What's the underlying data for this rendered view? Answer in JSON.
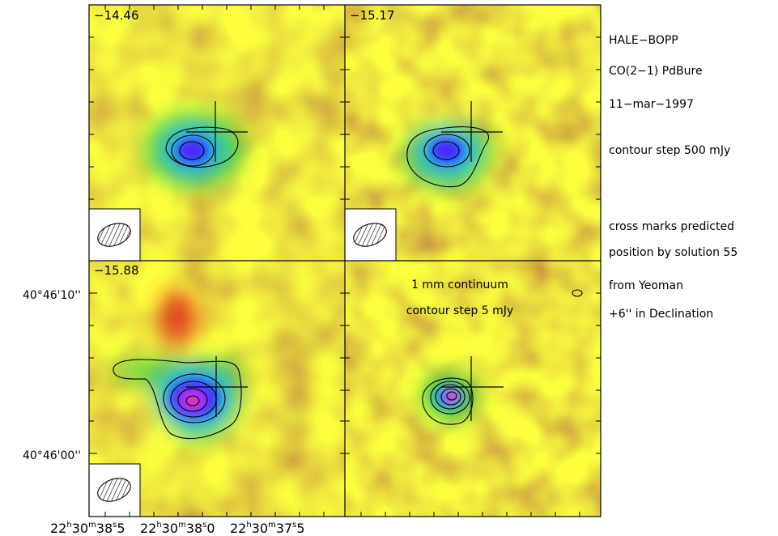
{
  "panels": [
    {
      "id": "p1",
      "velocity_label": "−14.46",
      "has_beam": true,
      "note": []
    },
    {
      "id": "p2",
      "velocity_label": "−15.17",
      "has_beam": true,
      "note": []
    },
    {
      "id": "p3",
      "velocity_label": "−15.88",
      "has_beam": true,
      "note": []
    },
    {
      "id": "p4",
      "velocity_label": "",
      "has_beam": false,
      "note": [
        "1 mm continuum",
        "contour step 5 mJy"
      ]
    }
  ],
  "y_axis": {
    "ticks": [
      "40°46'10''",
      "40°46'00''"
    ]
  },
  "x_axis": {
    "ticks": [
      {
        "h": "22",
        "m": "30",
        "s": "38",
        "frac": "5"
      },
      {
        "h": "22",
        "m": "30",
        "s": "38",
        "frac": "0"
      },
      {
        "h": "22",
        "m": "30",
        "s": "37",
        "frac": "5"
      }
    ]
  },
  "legend": {
    "object": "HALE−BOPP",
    "line": "CO(2−1) PdBure",
    "date": "11−mar−1997",
    "contour_step": "contour step 500 mJy",
    "cross_note_1": "cross marks predicted",
    "cross_note_2": "position by solution 55",
    "cross_note_3": "from Yeoman",
    "cross_note_4": "+6'' in Declination"
  },
  "colors": {
    "low": "#e8781a",
    "mid": "#ffff00",
    "green": "#3ecd3e",
    "cyan": "#1ab0ff",
    "blue": "#3333ff",
    "peak": "#ff3399"
  }
}
